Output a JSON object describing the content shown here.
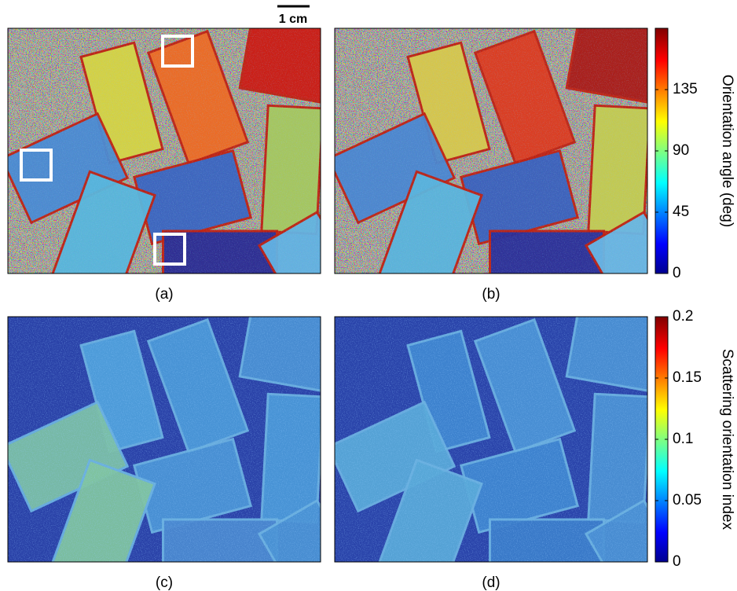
{
  "scale_bar": "1 cm",
  "panels": [
    {
      "label": "(a)"
    },
    {
      "label": "(b)"
    },
    {
      "label": "(c)"
    },
    {
      "label": "(d)"
    }
  ],
  "colorbars": [
    {
      "label": "Orientation angle (deg)",
      "ylim": [
        0,
        180
      ],
      "yticks": [
        0,
        45,
        90,
        135
      ]
    },
    {
      "label": "Scattering orientation index",
      "ylim": [
        0,
        0.2
      ],
      "yticks": [
        0,
        0.05,
        0.1,
        0.15,
        0.2
      ]
    }
  ]
}
